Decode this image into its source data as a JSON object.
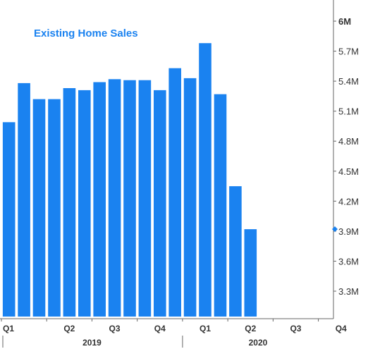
{
  "chart_data": {
    "type": "bar",
    "title": "Existing Home Sales",
    "categories": [
      "Jan 2019",
      "Feb 2019",
      "Mar 2019",
      "Apr 2019",
      "May 2019",
      "Jun 2019",
      "Jul 2019",
      "Aug 2019",
      "Sep 2019",
      "Oct 2019",
      "Nov 2019",
      "Dec 2019",
      "Jan 2020",
      "Feb 2020",
      "Mar 2020",
      "Apr 2020",
      "May 2020"
    ],
    "values": [
      4.99,
      5.38,
      5.22,
      5.22,
      5.33,
      5.31,
      5.39,
      5.42,
      5.41,
      5.41,
      5.31,
      5.53,
      5.43,
      5.78,
      5.27,
      4.35,
      3.92
    ],
    "last_value_marker": 3.92,
    "ylim": [
      3.1,
      6.0
    ],
    "y_ticks": [
      {
        "value": 6.0,
        "label": "6M"
      },
      {
        "value": 5.7,
        "label": "5.7M"
      },
      {
        "value": 5.4,
        "label": "5.4M"
      },
      {
        "value": 5.1,
        "label": "5.1M"
      },
      {
        "value": 4.8,
        "label": "4.8M"
      },
      {
        "value": 4.5,
        "label": "4.5M"
      },
      {
        "value": 4.2,
        "label": "4.2M"
      },
      {
        "value": 3.9,
        "label": "3.9M"
      },
      {
        "value": 3.6,
        "label": "3.6M"
      },
      {
        "value": 3.3,
        "label": "3.3M"
      }
    ],
    "quarter_labels": [
      "Q1",
      "Q2",
      "Q3",
      "Q4",
      "Q1",
      "Q2",
      "Q3",
      "Q4"
    ],
    "year_labels": [
      "2019",
      "2020"
    ],
    "grid": false,
    "colors": {
      "bar": "#1a82f0",
      "title": "#1a82f0",
      "axis": "#555555",
      "text": "#333333"
    }
  }
}
